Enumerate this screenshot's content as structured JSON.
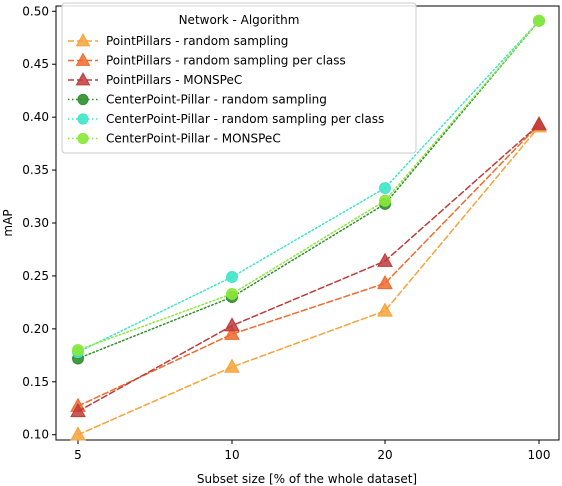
{
  "chart_data": {
    "type": "line",
    "xlabel": "Subset size [% of the whole dataset]",
    "ylabel": "mAP",
    "categories": [
      "5",
      "10",
      "20",
      "100"
    ],
    "ylim": [
      0.095,
      0.505
    ],
    "yticks": [
      "0.10",
      "0.15",
      "0.20",
      "0.25",
      "0.30",
      "0.35",
      "0.40",
      "0.45",
      "0.50"
    ],
    "grid": false,
    "legend": {
      "title": "Network - Algorithm",
      "placement": "top-left"
    },
    "series": [
      {
        "name": "PointPillars - random sampling",
        "values": [
          0.1,
          0.164,
          0.217,
          0.391
        ],
        "color": "#f5a33a",
        "marker": "triangle",
        "dash": "dashed"
      },
      {
        "name": "PointPillars - random sampling per class",
        "values": [
          0.127,
          0.195,
          0.243,
          0.393
        ],
        "color": "#ef6a2c",
        "marker": "triangle",
        "dash": "dashed"
      },
      {
        "name": "PointPillars - MONSPeC",
        "values": [
          0.122,
          0.203,
          0.264,
          0.393
        ],
        "color": "#bf3b3b",
        "marker": "triangle",
        "dash": "dashed"
      },
      {
        "name": "CenterPoint-Pillar - random sampling",
        "values": [
          0.172,
          0.23,
          0.318,
          0.491
        ],
        "color": "#2f8f2f",
        "marker": "circle",
        "dash": "dotted"
      },
      {
        "name": "CenterPoint-Pillar - random sampling per class",
        "values": [
          0.178,
          0.249,
          0.333,
          0.491
        ],
        "color": "#3ee6c8",
        "marker": "circle",
        "dash": "dotted"
      },
      {
        "name": "CenterPoint-Pillar - MONSPeC",
        "values": [
          0.18,
          0.233,
          0.321,
          0.491
        ],
        "color": "#8ce83a",
        "marker": "circle",
        "dash": "dotted"
      }
    ]
  }
}
